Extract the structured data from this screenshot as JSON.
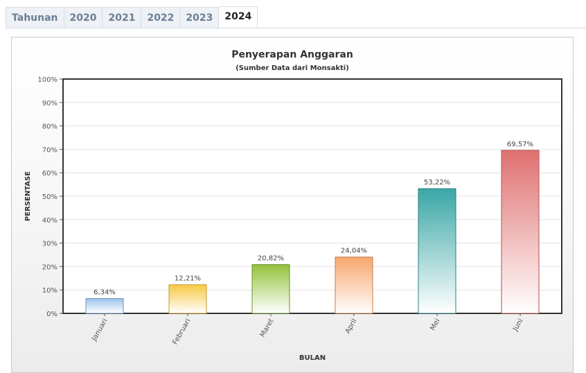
{
  "tabs": [
    {
      "label": "Tahunan",
      "active": false
    },
    {
      "label": "2020",
      "active": false
    },
    {
      "label": "2021",
      "active": false
    },
    {
      "label": "2022",
      "active": false
    },
    {
      "label": "2023",
      "active": false
    },
    {
      "label": "2024",
      "active": true
    }
  ],
  "chart_data": {
    "type": "bar",
    "title": "Penyerapan Anggaran",
    "subtitle": "(Sumber Data dari Monsakti)",
    "xlabel": "BULAN",
    "ylabel": "PERSENTASE",
    "categories": [
      "Januari",
      "Februari",
      "Maret",
      "April",
      "Mei",
      "Juni"
    ],
    "values": [
      6.34,
      12.21,
      20.82,
      24.04,
      53.22,
      69.57
    ],
    "value_labels": [
      "6,34%",
      "12,21%",
      "20,82%",
      "24,04%",
      "53,22%",
      "69,57%"
    ],
    "ylim": [
      0,
      100
    ],
    "yticks": [
      0,
      10,
      20,
      30,
      40,
      50,
      60,
      70,
      80,
      90,
      100
    ],
    "ytick_labels": [
      "0%",
      "10%",
      "20%",
      "30%",
      "40%",
      "50%",
      "60%",
      "70%",
      "80%",
      "90%",
      "100%"
    ],
    "grid": true,
    "legend": "none",
    "colors": [
      {
        "top": "#9cc3ec",
        "bottom": "#ffffff",
        "stroke": "#6f93bd"
      },
      {
        "top": "#f7c944",
        "bottom": "#ffffff",
        "stroke": "#c29b2a"
      },
      {
        "top": "#94c23c",
        "bottom": "#ffffff",
        "stroke": "#6b8f27"
      },
      {
        "top": "#f7a66d",
        "bottom": "#ffffff",
        "stroke": "#c47d4a"
      },
      {
        "top": "#3aa6a6",
        "bottom": "#ffffff",
        "stroke": "#2a7f7f"
      },
      {
        "top": "#e07070",
        "bottom": "#ffffff",
        "stroke": "#b24f4f"
      }
    ]
  }
}
